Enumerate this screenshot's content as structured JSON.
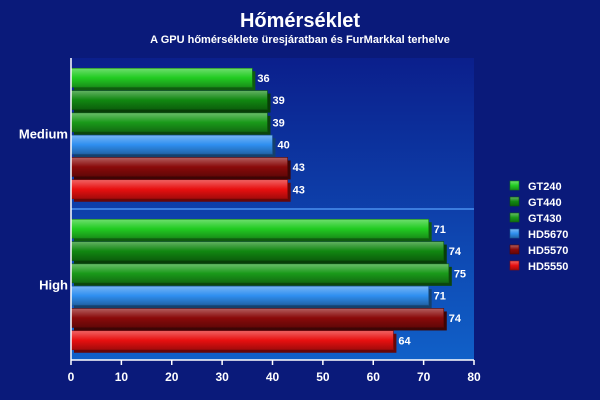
{
  "chart_data": {
    "type": "bar",
    "orientation": "horizontal",
    "title": "Hőmérséklet",
    "subtitle": "A GPU hőmérséklete üresjáratban és FurMarkkal terhelve",
    "categories": [
      "Medium",
      "High"
    ],
    "series": [
      {
        "name": "GT240",
        "values": [
          36,
          71
        ],
        "color": "#22cc22"
      },
      {
        "name": "GT440",
        "values": [
          39,
          74
        ],
        "color": "#118811"
      },
      {
        "name": "GT430",
        "values": [
          39,
          75
        ],
        "color": "#1a9a1a"
      },
      {
        "name": "HD5670",
        "values": [
          40,
          71
        ],
        "color": "#2f8ff0"
      },
      {
        "name": "HD5570",
        "values": [
          43,
          74
        ],
        "color": "#8a0a0a"
      },
      {
        "name": "HD5550",
        "values": [
          43,
          64
        ],
        "color": "#e81010"
      }
    ],
    "xlim": [
      0,
      80
    ],
    "xticks": [
      "0",
      "10",
      "20",
      "30",
      "40",
      "50",
      "60",
      "70",
      "80"
    ],
    "legend_position": "right",
    "grid": false
  },
  "colors": {
    "background": "#0a1a7a",
    "plot_bg_top": "#0b1f8c",
    "plot_bg_bottom": "#1060c8"
  }
}
